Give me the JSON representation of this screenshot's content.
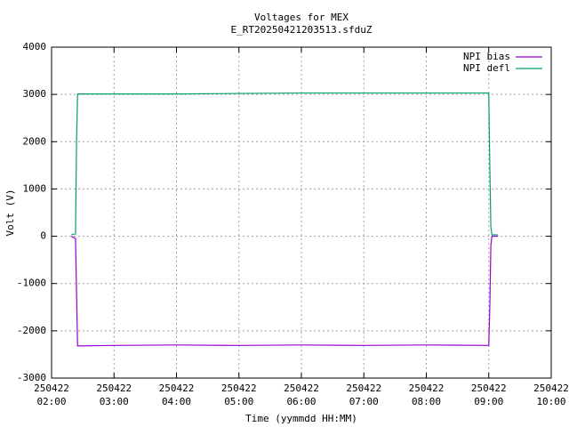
{
  "chart_data": {
    "type": "line",
    "title": "Voltages for MEX",
    "subtitle": "E_RT20250421203513.sfduZ",
    "x_label": "Time (yymmdd HH:MM)",
    "y_label": "Volt (V)",
    "x": [
      "250422 02:19",
      "250422 02:23",
      "250422 02:24",
      "250422 02:25",
      "250422 03:00",
      "250422 04:00",
      "250422 05:00",
      "250422 06:00",
      "250422 07:00",
      "250422 08:00",
      "250422 09:00",
      "250422 09:01",
      "250422 09:02",
      "250422 09:03",
      "250422 09:09"
    ],
    "series": [
      {
        "name": "NPI bias",
        "color": "#9400d3",
        "values": [
          0,
          -50,
          -1200,
          -2320,
          -2310,
          -2300,
          -2310,
          -2300,
          -2310,
          -2300,
          -2310,
          -1500,
          -200,
          0,
          0
        ]
      },
      {
        "name": "NPI defl",
        "color": "#009e73",
        "values": [
          30,
          50,
          2000,
          3010,
          3010,
          3010,
          3020,
          3030,
          3030,
          3030,
          3030,
          1500,
          200,
          30,
          30
        ]
      }
    ],
    "xlim": [
      "250422 02:00",
      "250422 10:00"
    ],
    "xticks": [
      "250422 02:00",
      "250422 03:00",
      "250422 04:00",
      "250422 05:00",
      "250422 06:00",
      "250422 07:00",
      "250422 08:00",
      "250422 09:00",
      "250422 10:00"
    ],
    "ylim": [
      -3000,
      4000
    ],
    "yticks": [
      -3000,
      -2000,
      -1000,
      0,
      1000,
      2000,
      3000,
      4000
    ],
    "grid": true,
    "legend": "top-right"
  }
}
